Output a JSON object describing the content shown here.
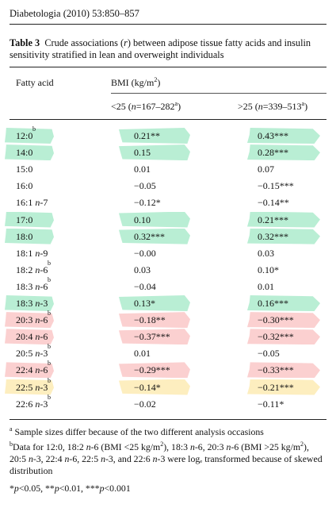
{
  "journal_header": "Diabetologia (2010) 53:850–857",
  "caption": {
    "label": "Table 3",
    "text": "Crude associations (r) between adipose tissue fatty acids and insulin sensitivity stratified in lean and overweight individuals"
  },
  "table": {
    "col_fatty_acid": "Fatty acid",
    "col_bmi": "BMI (kg/m²)",
    "col_lean": "<25 (n=167–282a)",
    "col_overweight": ">25 (n=339–513a)",
    "rows": [
      {
        "acid": "12:0",
        "sup": "b",
        "lean": "0.21**",
        "over": "0.43***",
        "hl": [
          "green",
          "green",
          "green"
        ]
      },
      {
        "acid": "14:0",
        "sup": "",
        "lean": "0.15",
        "over": "0.28***",
        "hl": [
          "green",
          "green",
          "green"
        ]
      },
      {
        "acid": "15:0",
        "sup": "",
        "lean": "0.01",
        "over": "0.07",
        "hl": [
          "",
          "",
          ""
        ]
      },
      {
        "acid": "16:0",
        "sup": "",
        "lean": "−0.05",
        "over": "−0.15***",
        "hl": [
          "",
          "",
          ""
        ]
      },
      {
        "acid": "16:1 n-7",
        "sup": "",
        "lean": "−0.12*",
        "over": "−0.14**",
        "hl": [
          "",
          "",
          ""
        ]
      },
      {
        "acid": "17:0",
        "sup": "",
        "lean": "0.10",
        "over": "0.21***",
        "hl": [
          "green",
          "green",
          "green"
        ]
      },
      {
        "acid": "18:0",
        "sup": "",
        "lean": "0.32***",
        "over": "0.32***",
        "hl": [
          "green",
          "green",
          "green"
        ]
      },
      {
        "acid": "18:1 n-9",
        "sup": "",
        "lean": "−0.00",
        "over": "0.03",
        "hl": [
          "",
          "",
          ""
        ]
      },
      {
        "acid": "18:2 n-6",
        "sup": "b",
        "lean": "0.03",
        "over": "0.10*",
        "hl": [
          "",
          "",
          ""
        ]
      },
      {
        "acid": "18:3 n-6",
        "sup": "b",
        "lean": "−0.04",
        "over": "0.01",
        "hl": [
          "",
          "",
          ""
        ]
      },
      {
        "acid": "18:3 n-3",
        "sup": "",
        "lean": "0.13*",
        "over": "0.16***",
        "hl": [
          "green",
          "green",
          "green"
        ]
      },
      {
        "acid": "20:3 n-6",
        "sup": "b",
        "lean": "−0.18**",
        "over": "−0.30***",
        "hl": [
          "red",
          "red",
          "red"
        ]
      },
      {
        "acid": "20:4 n-6",
        "sup": "",
        "lean": "−0.37***",
        "over": "−0.32***",
        "hl": [
          "red",
          "red",
          "red"
        ]
      },
      {
        "acid": "20:5 n-3",
        "sup": "b",
        "lean": "0.01",
        "over": "−0.05",
        "hl": [
          "",
          "",
          ""
        ]
      },
      {
        "acid": "22:4 n-6",
        "sup": "b",
        "lean": "−0.29***",
        "over": "−0.33***",
        "hl": [
          "red",
          "red",
          "red"
        ]
      },
      {
        "acid": "22:5 n-3",
        "sup": "b",
        "lean": "−0.14*",
        "over": "−0.21***",
        "hl": [
          "yellow",
          "yellow",
          "yellow"
        ]
      },
      {
        "acid": "22:6 n-3",
        "sup": "b",
        "lean": "−0.02",
        "over": "−0.11*",
        "hl": [
          "",
          "",
          ""
        ]
      }
    ]
  },
  "footnotes": {
    "a": "Sample sizes differ because of the two different analysis occasions",
    "b": "Data for 12:0, 18:2 n-6 (BMI <25 kg/m²), 18:3 n-6, 20:3 n-6 (BMI >25 kg/m²), 20:5 n-3, 22:4 n-6, 22:5 n-3, and 22:6 n-3 were logₑ transformed because of skewed distribution",
    "p": "*p<0.05, **p<0.01, ***p<0.001"
  },
  "colors": {
    "green": "#7fe0b0",
    "red": "#f7a9a9",
    "yellow": "#fce08a"
  }
}
